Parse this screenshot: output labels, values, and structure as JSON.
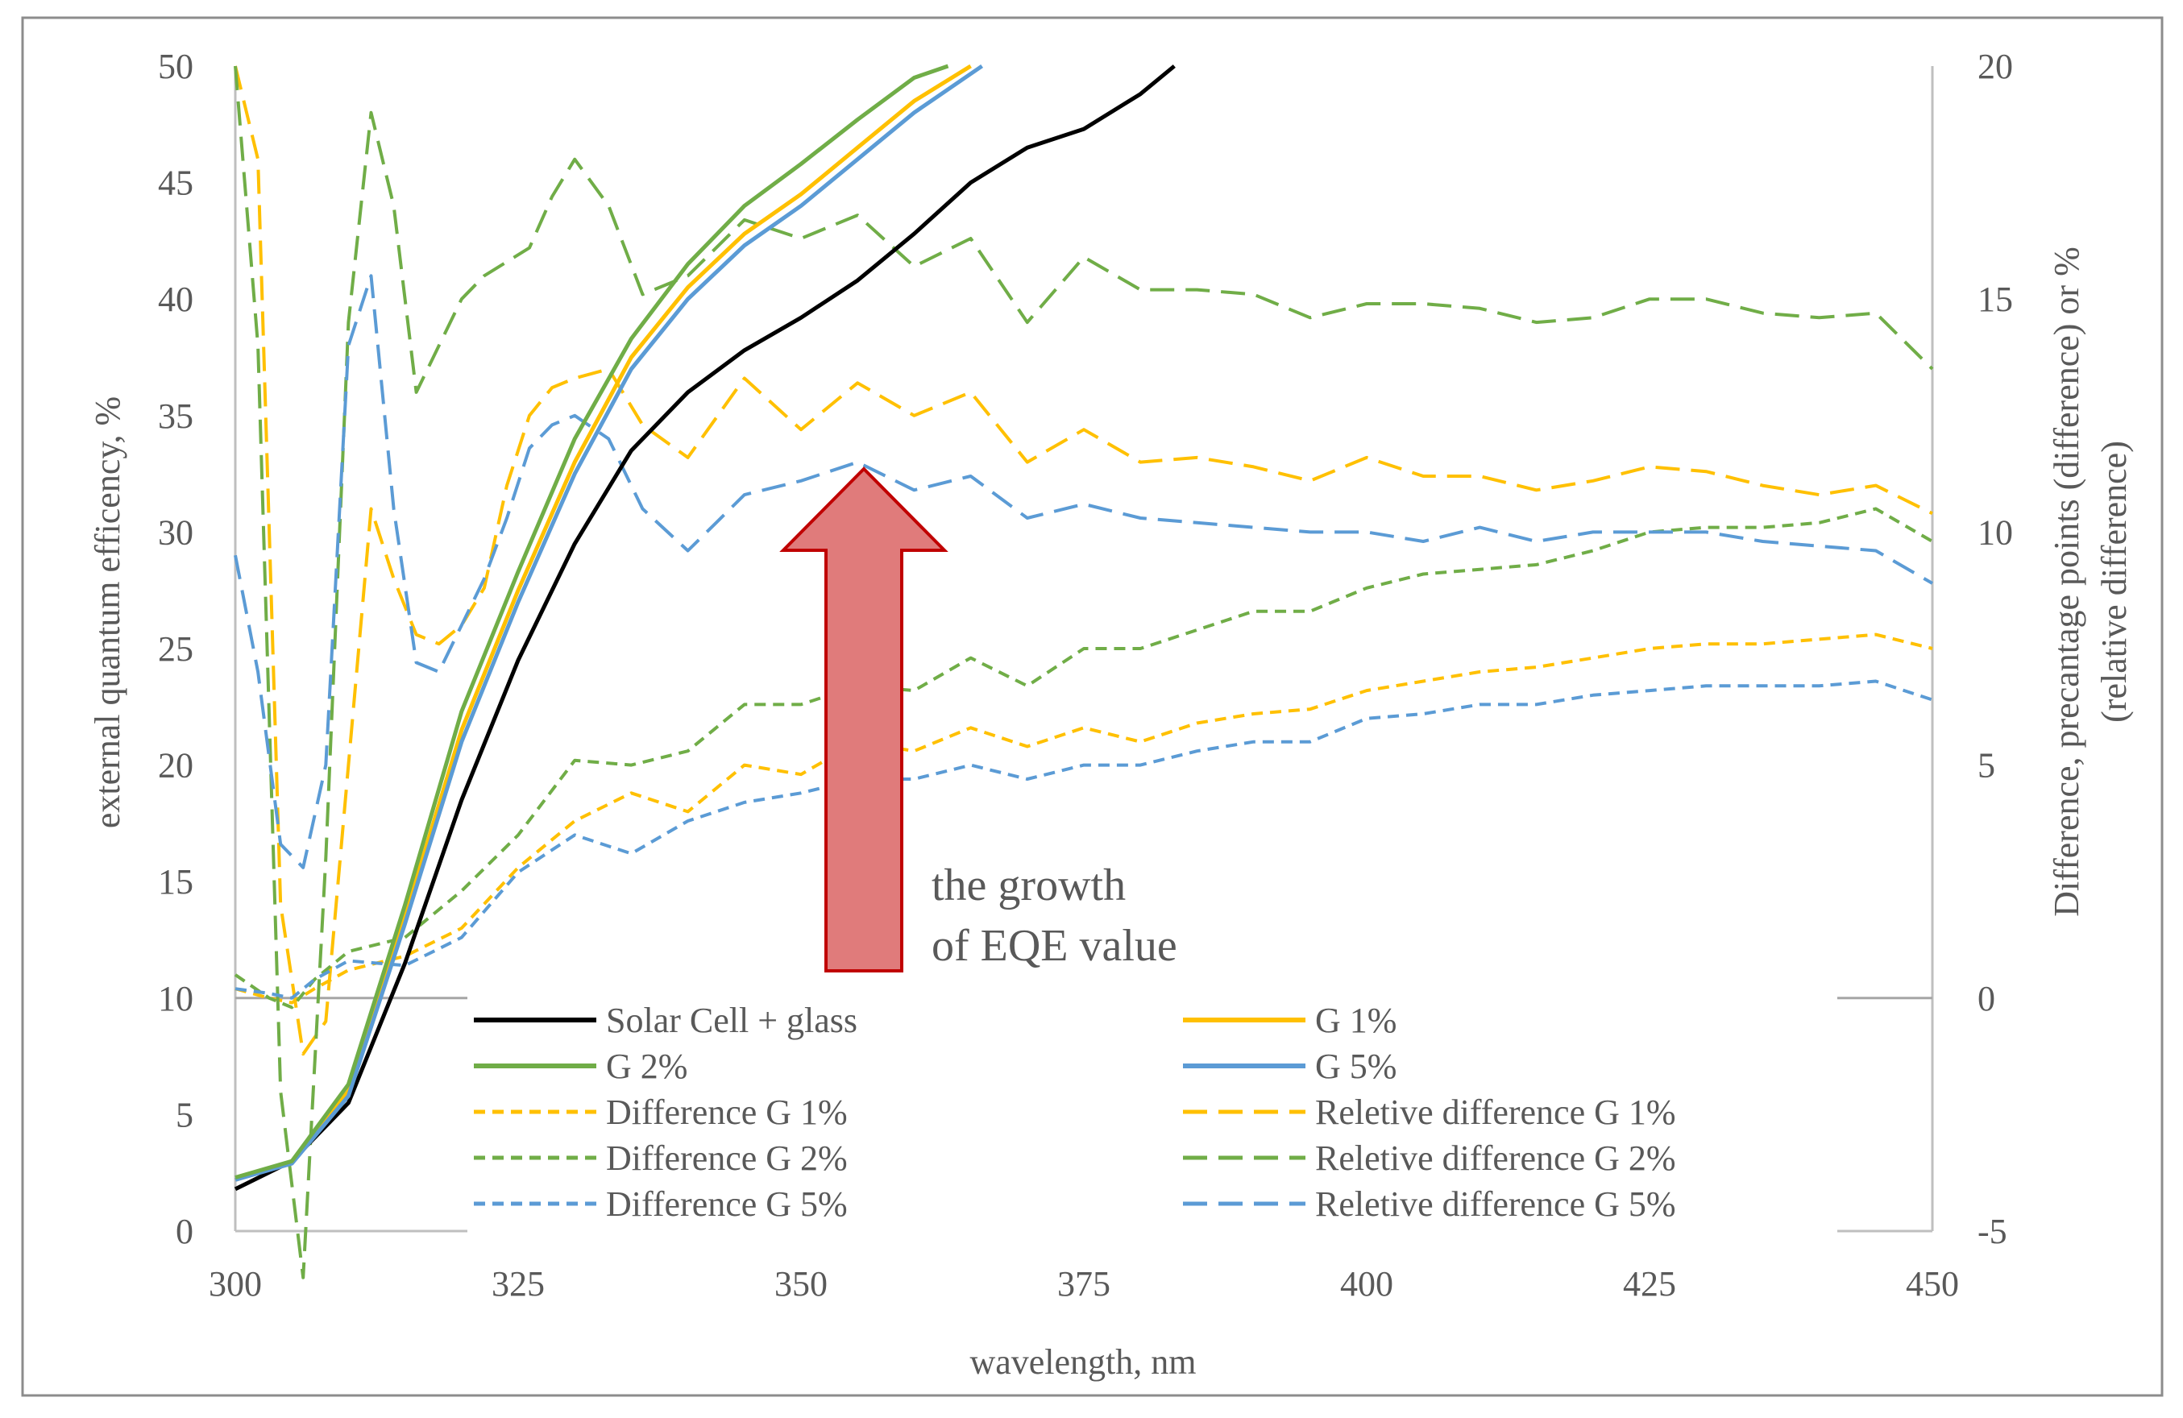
{
  "chart_data": {
    "type": "line",
    "xlabel": "wavelength, nm",
    "ylabel_left": "external  quantum efficency, %",
    "ylabel_right_line1": "Difference,  precantage points (difference)  or %",
    "ylabel_right_line2": "(relative  difference)",
    "xlim": [
      300,
      450
    ],
    "ylim_left": [
      0,
      50
    ],
    "ylim_right": [
      -5,
      20
    ],
    "x_ticks": [
      300,
      325,
      350,
      375,
      400,
      425,
      450
    ],
    "y_left_ticks": [
      0,
      5,
      10,
      15,
      20,
      25,
      30,
      35,
      40,
      45,
      50
    ],
    "y_right_ticks": [
      -5,
      0,
      5,
      10,
      15,
      20
    ],
    "annotation": {
      "line1": "the growth",
      "line2": "of EQE value"
    },
    "series": [
      {
        "name": "Solar Cell + glass",
        "axis": "left",
        "style": "solid",
        "color": "#000000",
        "x": [
          300,
          305,
          310,
          315,
          320,
          325,
          330,
          335,
          340,
          345,
          350,
          355,
          360,
          365,
          370,
          375,
          380,
          383
        ],
        "y": [
          1.8,
          3.0,
          5.5,
          11.5,
          18.5,
          24.5,
          29.5,
          33.5,
          36.0,
          37.8,
          39.2,
          40.8,
          42.8,
          45.0,
          46.5,
          47.3,
          48.8,
          50.0
        ]
      },
      {
        "name": "G 1%",
        "axis": "left",
        "style": "solid",
        "color": "#FFC000",
        "x": [
          300,
          305,
          310,
          315,
          320,
          325,
          330,
          335,
          340,
          345,
          350,
          355,
          360,
          365
        ],
        "y": [
          2.2,
          3.0,
          6.0,
          13.5,
          21.5,
          27.5,
          33.0,
          37.5,
          40.5,
          42.8,
          44.5,
          46.5,
          48.5,
          50.0
        ]
      },
      {
        "name": "G 2%",
        "axis": "left",
        "style": "solid",
        "color": "#70AD47",
        "x": [
          300,
          305,
          310,
          315,
          320,
          325,
          330,
          335,
          340,
          345,
          350,
          355,
          360,
          363
        ],
        "y": [
          2.3,
          3.0,
          6.3,
          14.0,
          22.3,
          28.3,
          34.0,
          38.3,
          41.5,
          44.0,
          45.8,
          47.7,
          49.5,
          50.0
        ]
      },
      {
        "name": "G 5%",
        "axis": "left",
        "style": "solid",
        "color": "#5B9BD5",
        "x": [
          300,
          305,
          310,
          315,
          320,
          325,
          330,
          335,
          340,
          345,
          350,
          355,
          360,
          366
        ],
        "y": [
          2.2,
          2.9,
          5.8,
          13.2,
          21.0,
          27.0,
          32.5,
          37.0,
          40.0,
          42.3,
          44.0,
          46.0,
          48.0,
          50.0
        ]
      },
      {
        "name": "Difference G 1%",
        "axis": "right",
        "style": "dash-short",
        "color": "#FFC000",
        "x": [
          300,
          303,
          305,
          307,
          310,
          315,
          320,
          325,
          330,
          335,
          340,
          345,
          350,
          355,
          360,
          365,
          370,
          375,
          380,
          385,
          390,
          395,
          400,
          405,
          410,
          415,
          420,
          425,
          430,
          435,
          440,
          445,
          450
        ],
        "y": [
          0.2,
          0.0,
          -0.1,
          0.2,
          0.6,
          0.9,
          1.5,
          2.8,
          3.8,
          4.4,
          4.0,
          5.0,
          4.8,
          5.5,
          5.3,
          5.8,
          5.4,
          5.8,
          5.5,
          5.9,
          6.1,
          6.2,
          6.6,
          6.8,
          7.0,
          7.1,
          7.3,
          7.5,
          7.6,
          7.6,
          7.7,
          7.8,
          7.5
        ]
      },
      {
        "name": "Reletive difference G 1%",
        "axis": "right",
        "style": "dash-long",
        "color": "#FFC000",
        "x": [
          300,
          302,
          304,
          306,
          308,
          310,
          312,
          314,
          316,
          318,
          320,
          322,
          324,
          326,
          328,
          330,
          333,
          336,
          340,
          345,
          350,
          355,
          360,
          365,
          370,
          375,
          380,
          385,
          390,
          395,
          400,
          405,
          410,
          415,
          420,
          425,
          430,
          435,
          440,
          445,
          450
        ],
        "y": [
          20,
          18,
          2,
          -1.2,
          -0.5,
          5,
          10.5,
          9,
          7.8,
          7.6,
          8,
          8.8,
          11,
          12.5,
          13.1,
          13.3,
          13.5,
          12.3,
          11.6,
          13.3,
          12.2,
          13.2,
          12.5,
          13,
          11.5,
          12.2,
          11.5,
          11.6,
          11.4,
          11.1,
          11.6,
          11.2,
          11.2,
          10.9,
          11.1,
          11.4,
          11.3,
          11,
          10.8,
          11,
          10.4
        ]
      },
      {
        "name": "Difference G 2%",
        "axis": "right",
        "style": "dash-short",
        "color": "#70AD47",
        "x": [
          300,
          303,
          305,
          307,
          310,
          315,
          320,
          325,
          330,
          335,
          340,
          345,
          350,
          355,
          360,
          365,
          370,
          375,
          380,
          385,
          390,
          395,
          400,
          405,
          410,
          415,
          420,
          425,
          430,
          435,
          440,
          445,
          450
        ],
        "y": [
          0.5,
          0.0,
          -0.2,
          0.4,
          1.0,
          1.3,
          2.3,
          3.5,
          5.1,
          5.0,
          5.3,
          6.3,
          6.3,
          6.7,
          6.6,
          7.3,
          6.7,
          7.5,
          7.5,
          7.9,
          8.3,
          8.3,
          8.8,
          9.1,
          9.2,
          9.3,
          9.6,
          10.0,
          10.1,
          10.1,
          10.2,
          10.5,
          9.8
        ]
      },
      {
        "name": "Reletive difference G 2%",
        "axis": "right",
        "style": "dash-long",
        "color": "#70AD47",
        "x": [
          300,
          302,
          304,
          306,
          308,
          310,
          312,
          314,
          316,
          318,
          320,
          322,
          324,
          326,
          328,
          330,
          333,
          336,
          340,
          345,
          350,
          355,
          360,
          365,
          370,
          375,
          380,
          385,
          390,
          395,
          400,
          405,
          410,
          415,
          420,
          425,
          430,
          435,
          440,
          445,
          450
        ],
        "y": [
          20,
          14,
          -2,
          -6,
          3,
          14.5,
          19,
          17,
          13,
          14,
          15,
          15.5,
          15.8,
          16.1,
          17.2,
          18,
          17,
          15.1,
          15.5,
          16.7,
          16.3,
          16.8,
          15.7,
          16.3,
          14.5,
          15.9,
          15.2,
          15.2,
          15.1,
          14.6,
          14.9,
          14.9,
          14.8,
          14.5,
          14.6,
          15.0,
          15.0,
          14.7,
          14.6,
          14.7,
          13.5
        ]
      },
      {
        "name": "Difference G 5%",
        "axis": "right",
        "style": "dash-short",
        "color": "#5B9BD5",
        "x": [
          300,
          303,
          305,
          307,
          310,
          315,
          320,
          325,
          330,
          335,
          340,
          345,
          350,
          355,
          360,
          365,
          370,
          375,
          380,
          385,
          390,
          395,
          400,
          405,
          410,
          415,
          420,
          425,
          430,
          435,
          440,
          445,
          450
        ],
        "y": [
          0.2,
          0.1,
          0.0,
          0.4,
          0.8,
          0.7,
          1.3,
          2.7,
          3.5,
          3.1,
          3.8,
          4.2,
          4.4,
          4.7,
          4.7,
          5.0,
          4.7,
          5.0,
          5.0,
          5.3,
          5.5,
          5.5,
          6.0,
          6.1,
          6.3,
          6.3,
          6.5,
          6.6,
          6.7,
          6.7,
          6.7,
          6.8,
          6.4
        ]
      },
      {
        "name": "Reletive difference G 5%",
        "axis": "right",
        "style": "dash-long",
        "color": "#5B9BD5",
        "x": [
          300,
          302,
          304,
          306,
          308,
          310,
          312,
          314,
          316,
          318,
          320,
          322,
          324,
          326,
          328,
          330,
          333,
          336,
          340,
          345,
          350,
          355,
          360,
          365,
          370,
          375,
          380,
          385,
          390,
          395,
          400,
          405,
          410,
          415,
          420,
          425,
          430,
          435,
          440,
          445,
          450
        ],
        "y": [
          9.5,
          7,
          3.3,
          2.8,
          5,
          14,
          15.5,
          10.5,
          7.2,
          7,
          8,
          9,
          10.3,
          11.8,
          12.3,
          12.5,
          12.0,
          10.5,
          9.6,
          10.8,
          11.1,
          11.5,
          10.9,
          11.2,
          10.3,
          10.6,
          10.3,
          10.2,
          10.1,
          10.0,
          10.0,
          9.8,
          10.1,
          9.8,
          10.0,
          10.0,
          10.0,
          9.8,
          9.7,
          9.6,
          8.9
        ]
      }
    ]
  }
}
